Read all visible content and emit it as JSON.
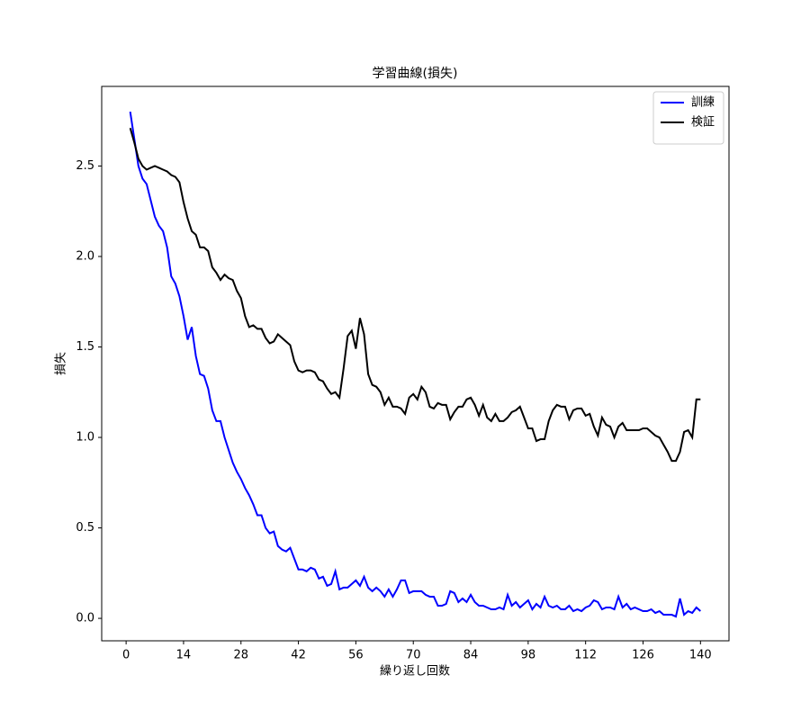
{
  "chart_data": {
    "type": "line",
    "title": "学習曲線(損失)",
    "x_label": "繰り返し回数",
    "y_label": "損失",
    "x": [
      1,
      2,
      3,
      4,
      5,
      6,
      7,
      8,
      9,
      10,
      11,
      12,
      13,
      14,
      15,
      16,
      17,
      18,
      19,
      20,
      21,
      22,
      23,
      24,
      25,
      26,
      27,
      28,
      29,
      30,
      31,
      32,
      33,
      34,
      35,
      36,
      37,
      38,
      39,
      40,
      41,
      42,
      43,
      44,
      45,
      46,
      47,
      48,
      49,
      50,
      51,
      52,
      53,
      54,
      55,
      56,
      57,
      58,
      59,
      60,
      61,
      62,
      63,
      64,
      65,
      66,
      67,
      68,
      69,
      70,
      71,
      72,
      73,
      74,
      75,
      76,
      77,
      78,
      79,
      80,
      81,
      82,
      83,
      84,
      85,
      86,
      87,
      88,
      89,
      90,
      91,
      92,
      93,
      94,
      95,
      96,
      97,
      98,
      99,
      100,
      101,
      102,
      103,
      104,
      105,
      106,
      107,
      108,
      109,
      110,
      111,
      112,
      113,
      114,
      115,
      116,
      117,
      118,
      119,
      120,
      121,
      122,
      123,
      124,
      125,
      126,
      127,
      128,
      129,
      130,
      131,
      132,
      133,
      134,
      135,
      136,
      137,
      138,
      139,
      140
    ],
    "series": [
      {
        "name": "訓練",
        "color": "#0000ff",
        "values": [
          2.8,
          2.65,
          2.5,
          2.43,
          2.4,
          2.31,
          2.22,
          2.17,
          2.14,
          2.05,
          1.89,
          1.85,
          1.78,
          1.67,
          1.54,
          1.61,
          1.45,
          1.35,
          1.34,
          1.27,
          1.15,
          1.09,
          1.09,
          1.0,
          0.93,
          0.86,
          0.81,
          0.77,
          0.72,
          0.68,
          0.63,
          0.57,
          0.57,
          0.5,
          0.47,
          0.48,
          0.4,
          0.38,
          0.37,
          0.39,
          0.33,
          0.27,
          0.27,
          0.26,
          0.28,
          0.27,
          0.22,
          0.23,
          0.18,
          0.19,
          0.26,
          0.16,
          0.17,
          0.17,
          0.19,
          0.21,
          0.18,
          0.23,
          0.17,
          0.15,
          0.17,
          0.15,
          0.12,
          0.16,
          0.12,
          0.16,
          0.21,
          0.21,
          0.14,
          0.15,
          0.15,
          0.15,
          0.13,
          0.12,
          0.12,
          0.07,
          0.07,
          0.08,
          0.15,
          0.14,
          0.09,
          0.11,
          0.09,
          0.13,
          0.09,
          0.07,
          0.07,
          0.06,
          0.05,
          0.05,
          0.06,
          0.05,
          0.13,
          0.07,
          0.09,
          0.06,
          0.08,
          0.1,
          0.05,
          0.08,
          0.06,
          0.12,
          0.07,
          0.06,
          0.07,
          0.05,
          0.05,
          0.07,
          0.04,
          0.05,
          0.04,
          0.06,
          0.07,
          0.1,
          0.09,
          0.05,
          0.06,
          0.06,
          0.05,
          0.12,
          0.06,
          0.08,
          0.05,
          0.06,
          0.05,
          0.04,
          0.04,
          0.05,
          0.03,
          0.04,
          0.02,
          0.02,
          0.02,
          0.01,
          0.11,
          0.02,
          0.04,
          0.03,
          0.06,
          0.04
        ]
      },
      {
        "name": "検証",
        "color": "#000000",
        "values": [
          2.71,
          2.63,
          2.54,
          2.5,
          2.48,
          2.49,
          2.5,
          2.49,
          2.48,
          2.47,
          2.45,
          2.44,
          2.41,
          2.3,
          2.21,
          2.14,
          2.12,
          2.05,
          2.05,
          2.03,
          1.94,
          1.91,
          1.87,
          1.9,
          1.88,
          1.87,
          1.81,
          1.77,
          1.67,
          1.61,
          1.62,
          1.6,
          1.6,
          1.55,
          1.52,
          1.53,
          1.57,
          1.55,
          1.53,
          1.51,
          1.42,
          1.37,
          1.36,
          1.37,
          1.37,
          1.36,
          1.32,
          1.31,
          1.27,
          1.24,
          1.25,
          1.22,
          1.38,
          1.56,
          1.59,
          1.49,
          1.66,
          1.57,
          1.35,
          1.29,
          1.28,
          1.25,
          1.18,
          1.22,
          1.17,
          1.17,
          1.16,
          1.13,
          1.22,
          1.24,
          1.21,
          1.28,
          1.25,
          1.17,
          1.16,
          1.19,
          1.18,
          1.18,
          1.1,
          1.14,
          1.17,
          1.17,
          1.21,
          1.22,
          1.18,
          1.12,
          1.18,
          1.11,
          1.09,
          1.13,
          1.09,
          1.09,
          1.11,
          1.14,
          1.15,
          1.17,
          1.11,
          1.05,
          1.05,
          0.98,
          0.99,
          0.99,
          1.09,
          1.15,
          1.18,
          1.17,
          1.17,
          1.1,
          1.15,
          1.16,
          1.16,
          1.12,
          1.13,
          1.06,
          1.01,
          1.11,
          1.07,
          1.06,
          1.0,
          1.06,
          1.08,
          1.04,
          1.04,
          1.04,
          1.04,
          1.05,
          1.05,
          1.03,
          1.01,
          1.0,
          0.96,
          0.92,
          0.87,
          0.87,
          0.92,
          1.03,
          1.04,
          1.0,
          1.21,
          1.21
        ]
      }
    ],
    "xlim": [
      -5.95,
      146.95
    ],
    "ylim": [
      -0.124,
      2.94
    ],
    "xticks": [
      0,
      14,
      28,
      42,
      56,
      70,
      84,
      98,
      112,
      126,
      140
    ],
    "yticks": [
      {
        "value": 0,
        "label": "0.0"
      },
      0.5,
      {
        "value": 1,
        "label": "1.0"
      },
      1.5,
      {
        "value": 2,
        "label": "2.0"
      },
      2.5
    ],
    "legend": "upper right"
  }
}
